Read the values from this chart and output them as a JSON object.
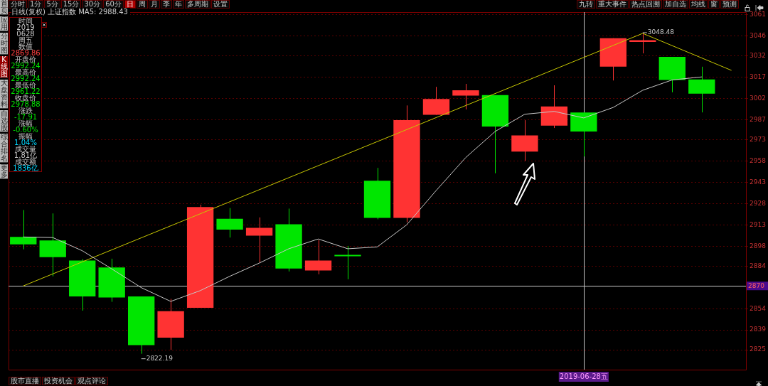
{
  "chart_data": {
    "type": "candlestick",
    "title": "日线(复权)  上证指数  MA5: 2988.43",
    "categories": [
      null,
      null,
      null,
      null,
      null,
      null,
      null,
      null,
      null,
      null,
      null,
      null,
      null,
      null,
      null,
      null,
      null,
      null,
      null,
      "2019-06-28五",
      null,
      null,
      null,
      null,
      null
    ],
    "series": [
      {
        "ohlc": [
          [
            2904.5,
            2923.5,
            2895.8,
            2899.3
          ],
          [
            2902.0,
            2921.1,
            2876.8,
            2890.3
          ],
          [
            2887.9,
            2888.9,
            2852.6,
            2862.6
          ],
          [
            2883.0,
            2889.2,
            2858.8,
            2861.9
          ],
          [
            2862.6,
            2862.6,
            2822.19,
            2828.3
          ],
          [
            2833.5,
            2860.9,
            2824.9,
            2852.2
          ],
          [
            2854.6,
            2927.3,
            2854.6,
            2925.6
          ],
          [
            2917.3,
            2924.9,
            2904.1,
            2909.7
          ],
          [
            2905.5,
            2918.3,
            2886.5,
            2911.0
          ],
          [
            2913.5,
            2924.5,
            2880.2,
            2882.3
          ],
          [
            2880.9,
            2902.4,
            2878.2,
            2887.9
          ],
          [
            2891.0,
            2898.2,
            2874.7,
            2890.9
          ],
          [
            2944.2,
            2953.2,
            2917.0,
            2918.0
          ],
          [
            2918.0,
            2997.2,
            2914.8,
            2986.8
          ],
          [
            2990.6,
            3010.3,
            2990.6,
            3001.7
          ],
          [
            3004.1,
            3012.4,
            2994.4,
            3007.9
          ],
          [
            3004.5,
            3004.5,
            2949.4,
            2982.3
          ],
          [
            2964.7,
            2986.8,
            2958.1,
            2976.1
          ],
          [
            2983.0,
            3011.4,
            2981.3,
            2996.5
          ],
          [
            2992.24,
            2992.24,
            2961.22,
            2978.88
          ],
          [
            3024.5,
            3044.6,
            3014.8,
            3044.6
          ],
          [
            3042.0,
            3048.48,
            3033.9,
            3043.2
          ],
          [
            3031.4,
            3031.4,
            3006.5,
            3015.2
          ],
          [
            3015.5,
            3024.5,
            2992.3,
            3005.5
          ],
          null
        ],
        "colors": [
          "#00e600",
          "#00e600",
          "#00e600",
          "#00e600",
          "#00e600",
          "#ff3333",
          "#ff3333",
          "#00e600",
          "#ff3333",
          "#00e600",
          "#ff3333",
          "#00e600",
          "#00e600",
          "#ff3333",
          "#ff3333",
          "#ff3333",
          "#00e600",
          "#ff3333",
          "#ff3333",
          "#00e600",
          "#ff3333",
          "#ff3333",
          "#00e600",
          "#00e600",
          null
        ]
      },
      {
        "type": "line",
        "color": "#c8c8c8",
        "values": [
          2904.5,
          2904.1,
          2894.8,
          2882.0,
          2868.8,
          2859.1,
          2866.7,
          2876.8,
          2886.1,
          2896.2,
          2903.1,
          2896.2,
          2897.5,
          2913.1,
          2937.3,
          2960.5,
          2978.9,
          2991.0,
          2993.0,
          2988.4,
          2995.8,
          3007.9,
          3015.2,
          3017.3,
          null
        ]
      },
      {
        "type": "line",
        "color": "#c8c800",
        "values": [
          2870,
          null,
          null,
          null,
          null,
          null,
          null,
          null,
          null,
          null,
          null,
          null,
          null,
          null,
          null,
          null,
          null,
          null,
          null,
          null,
          null,
          3048,
          null,
          null,
          3022
        ]
      }
    ],
    "ylim": [
      2811,
      3063
    ],
    "yticks": [
      2825,
      2839,
      2854,
      2884,
      2898,
      2913,
      2928,
      2943,
      2958,
      2973,
      2987,
      3002,
      3017,
      3032,
      3046,
      3061
    ],
    "grid": "y",
    "marker": "none",
    "line_style": "solid",
    "ref_lines": [
      {
        "axis": "y",
        "value": 2870,
        "label": "2870",
        "color": "#c8c8c8"
      },
      {
        "axis": "x",
        "value": "2019-06-28五",
        "color": "#c8c8c8"
      }
    ],
    "annotations": [
      "分时",
      "1分",
      "5分",
      "15分",
      "30分",
      "60分",
      "日",
      "周",
      "月",
      "季",
      "年",
      "多周期",
      "设置",
      "九转",
      "重大事件",
      "热点回溯",
      "加自选",
      "均线",
      "窗",
      "预测",
      "首页",
      "应用",
      "分时图",
      "K线图",
      "大盘资料",
      "自选股",
      "综合排名",
      "更多",
      "时间",
      "2019",
      "0628",
      "周五",
      "数值",
      "2869.86",
      "开盘价",
      "2992.24",
      "最高价",
      "2992.24",
      "最低价",
      "2961.22",
      "收盘价",
      "2978.88",
      "涨跌",
      "-17.91",
      "涨幅",
      "-0.60%",
      "振幅",
      "1.04%",
      "成交量",
      "1.81亿",
      "成交额",
      "1836亿",
      "股市直播",
      "投资机会",
      "观点评论",
      "2822.19",
      "3048.48"
    ]
  }
}
